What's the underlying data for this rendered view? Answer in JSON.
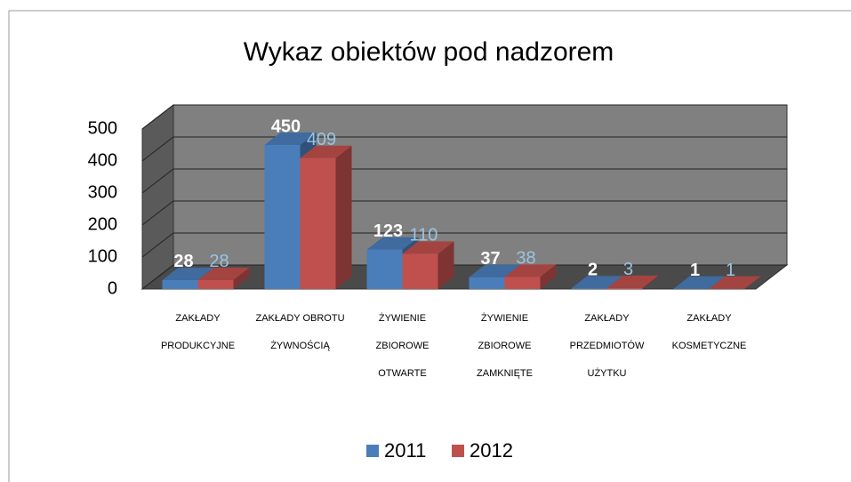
{
  "chart_data": {
    "type": "bar3d",
    "title": "Wykaz obiektów pod nadzorem",
    "categories": [
      "ZAKŁADY PRODUKCYJNE",
      "ZAKŁADY OBROTU ŻYWNOŚCIĄ",
      "ŻYWIENIE ZBIOROWE OTWARTE",
      "ŻYWIENIE ZBIOROWE ZAMKNIĘTE",
      "ZAKŁADY PRZEDMIOTÓW UŻYTKU",
      "ZAKŁADY KOSMETYCZNE"
    ],
    "series": [
      {
        "name": "2011",
        "color": "#4a7ebb",
        "values": [
          28,
          450,
          123,
          37,
          2,
          1
        ]
      },
      {
        "name": "2012",
        "color": "#c0504d",
        "values": [
          28,
          409,
          110,
          38,
          3,
          1
        ]
      }
    ],
    "ylim": [
      0,
      500
    ],
    "yticks": [
      0,
      100,
      200,
      300,
      400,
      500
    ],
    "grid": true,
    "legend": "bottom"
  }
}
